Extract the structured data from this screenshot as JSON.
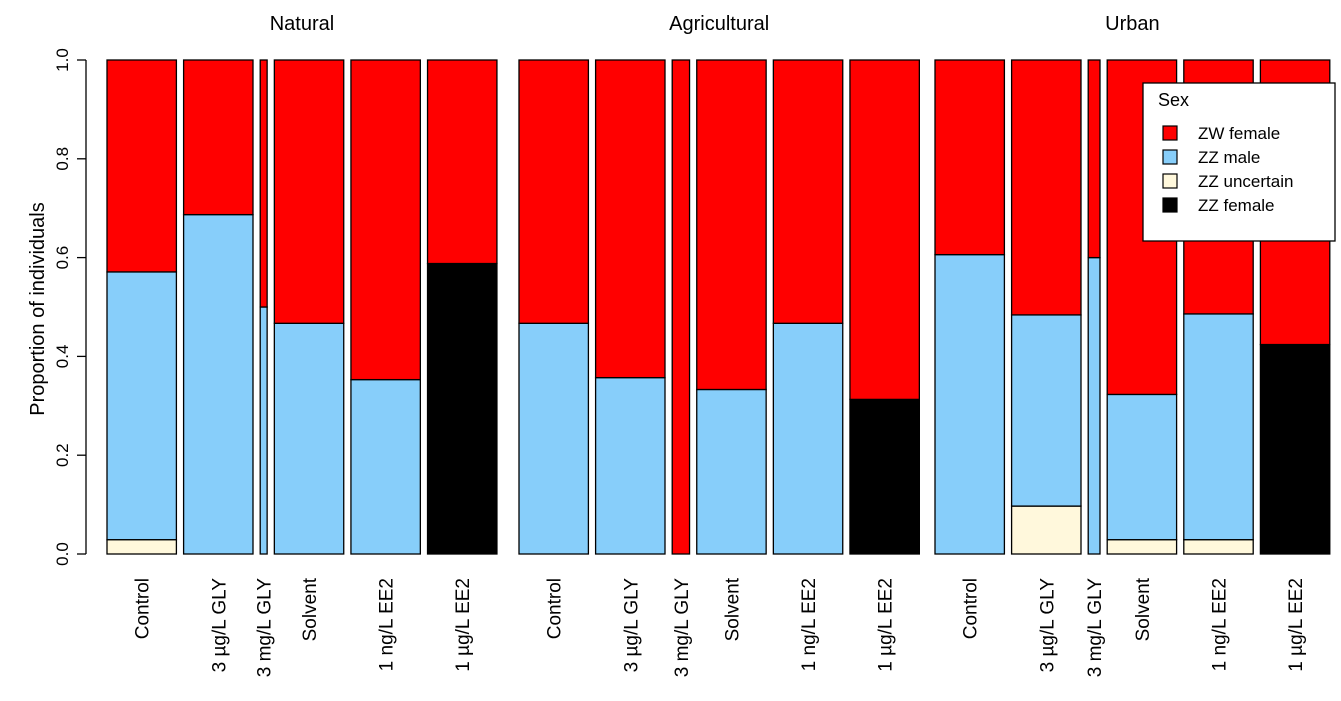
{
  "chart_data": {
    "type": "bar",
    "stacked": true,
    "ylabel": "Proportion of individuals",
    "ylim": [
      0,
      1
    ],
    "yticks": [
      "0.0",
      "0.2",
      "0.4",
      "0.6",
      "0.8",
      "1.0"
    ],
    "panels": [
      {
        "title": "Natural",
        "categories": [
          "Control",
          "3 µg/L GLY",
          "3 mg/L GLY",
          "Solvent",
          "1 ng/L EE2",
          "1 µg/L EE2"
        ],
        "widths": [
          1.0,
          1.0,
          0.1,
          1.0,
          1.0,
          1.0
        ],
        "series": [
          {
            "name": "ZZ female",
            "values": [
              0,
              0,
              0,
              0,
              0,
              0.588
            ]
          },
          {
            "name": "ZZ uncertain",
            "values": [
              0.029,
              0,
              0,
              0,
              0,
              0
            ]
          },
          {
            "name": "ZZ male",
            "values": [
              0.542,
              0.687,
              0.5,
              0.467,
              0.353,
              0
            ]
          },
          {
            "name": "ZW female",
            "values": [
              0.429,
              0.313,
              0.5,
              0.533,
              0.647,
              0.412
            ]
          }
        ]
      },
      {
        "title": "Agricultural",
        "categories": [
          "Control",
          "3 µg/L GLY",
          "3 mg/L GLY",
          "Solvent",
          "1 ng/L EE2",
          "1 µg/L EE2"
        ],
        "widths": [
          1.0,
          1.0,
          0.25,
          1.0,
          1.0,
          1.0
        ],
        "series": [
          {
            "name": "ZZ female",
            "values": [
              0,
              0,
              0,
              0,
              0,
              0.313
            ]
          },
          {
            "name": "ZZ uncertain",
            "values": [
              0,
              0,
              0,
              0,
              0,
              0
            ]
          },
          {
            "name": "ZZ male",
            "values": [
              0.467,
              0.357,
              0,
              0.333,
              0.467,
              0
            ]
          },
          {
            "name": "ZW female",
            "values": [
              0.533,
              0.643,
              1.0,
              0.667,
              0.533,
              0.687
            ]
          }
        ]
      },
      {
        "title": "Urban",
        "categories": [
          "Control",
          "3 µg/L GLY",
          "3 mg/L GLY",
          "Solvent",
          "1 ng/L EE2",
          "1 µg/L EE2"
        ],
        "widths": [
          1.0,
          1.0,
          0.17,
          1.0,
          1.0,
          1.0
        ],
        "series": [
          {
            "name": "ZZ female",
            "values": [
              0,
              0,
              0,
              0,
              0,
              0.424
            ]
          },
          {
            "name": "ZZ uncertain",
            "values": [
              0,
              0.097,
              0,
              0.029,
              0.029,
              0
            ]
          },
          {
            "name": "ZZ male",
            "values": [
              0.606,
              0.387,
              0.6,
              0.294,
              0.457,
              0
            ]
          },
          {
            "name": "ZW female",
            "values": [
              0.394,
              0.516,
              0.4,
              0.677,
              0.514,
              0.576
            ]
          }
        ]
      }
    ],
    "legend": {
      "title": "Sex",
      "placement": "top-right",
      "entries": [
        "ZW female",
        "ZZ male",
        "ZZ uncertain",
        "ZZ female"
      ]
    },
    "colors": {
      "ZW female": "#ff0000",
      "ZZ male": "#87cefa",
      "ZZ uncertain": "#fff8dc",
      "ZZ female": "#000000"
    }
  }
}
